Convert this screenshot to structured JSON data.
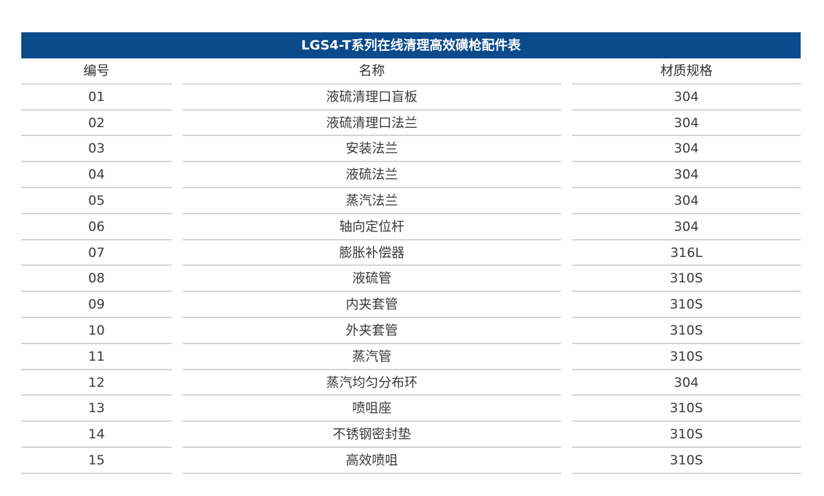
{
  "title": "LGS4-T系列在线清理高效磺枪配件表",
  "colors": {
    "header_bg": "#0b4a8b"
  },
  "columns": [
    "编号",
    "名称",
    "材质规格"
  ],
  "rows": [
    [
      "01",
      "液硫清理口盲板",
      "304"
    ],
    [
      "02",
      "液硫清理口法兰",
      "304"
    ],
    [
      "03",
      "安装法兰",
      "304"
    ],
    [
      "04",
      "液硫法兰",
      "304"
    ],
    [
      "05",
      "蒸汽法兰",
      "304"
    ],
    [
      "06",
      "轴向定位杆",
      "304"
    ],
    [
      "07",
      "膨胀补偿器",
      "316L"
    ],
    [
      "08",
      "液硫管",
      "310S"
    ],
    [
      "09",
      "内夹套管",
      "310S"
    ],
    [
      "10",
      "外夹套管",
      "310S"
    ],
    [
      "11",
      "蒸汽管",
      "310S"
    ],
    [
      "12",
      "蒸汽均匀分布环",
      "304"
    ],
    [
      "13",
      "喷咀座",
      "310S"
    ],
    [
      "14",
      "不锈钢密封垫",
      "310S"
    ],
    [
      "15",
      "高效喷咀",
      "310S"
    ]
  ]
}
